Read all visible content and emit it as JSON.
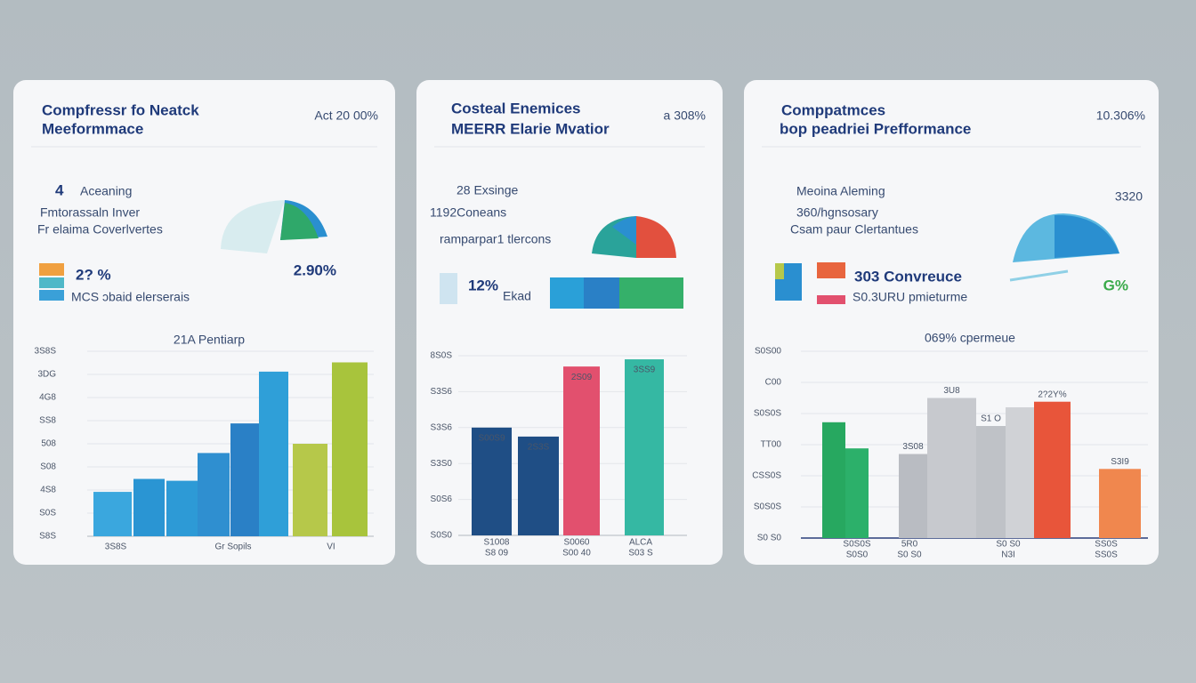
{
  "cards": [
    {
      "title": [
        "Compfressr fo Neatck",
        "Meeformmace"
      ],
      "corner": "Act 20 00%",
      "stats": [
        "4",
        "Aceaning",
        "Fmtorassaln Inver",
        "Fr elaima Coverlvertes"
      ],
      "big_value": "2.90%",
      "legend": [
        "2? %",
        "MCS ɔbaid elerserais"
      ],
      "chart": {
        "caption": "21A Pentiarp",
        "ylim": [
          0,
          100
        ],
        "ytick_labels": [
          "3S8S",
          "3DG",
          "4G8",
          "SS8",
          "508",
          "S08",
          "4S8",
          "S0S",
          "S8S"
        ],
        "x_labels": [
          [
            "3S8S"
          ],
          [
            "Gr Sopils"
          ],
          [
            "VI"
          ]
        ],
        "bars": [
          {
            "value": 24,
            "color": "#3aa7de"
          },
          {
            "value": 31,
            "color": "#2a95d3"
          },
          {
            "value": 30,
            "color": "#2d9ad6"
          },
          {
            "value": 45,
            "color": "#2f8fd0"
          },
          {
            "value": 61,
            "color": "#2a80c6"
          },
          {
            "value": 89,
            "color": "#2f9fd8"
          },
          {
            "value": 50,
            "color": "#b6c84a"
          },
          {
            "value": 94,
            "color": "#a8c43c"
          }
        ]
      }
    },
    {
      "title": [
        "Costeal Enemices",
        "MEERR Elarie Mvatior"
      ],
      "corner": "a 308%",
      "stats": [
        "28 Exsinge",
        "1192Coneans",
        "ramparpar1 tlercons"
      ],
      "big_value": "12%",
      "legend": [
        "Ekad"
      ],
      "chart": {
        "ylim": [
          0,
          100
        ],
        "ytick_labels": [
          "8S0S",
          "S3S6",
          "S3S6",
          "S3S0",
          "S0S6",
          "S0S0"
        ],
        "x_labels": [
          [
            "S1008",
            "S8 09"
          ],
          [
            "S0060",
            "S00 40"
          ],
          [
            "ALCA",
            "S03 S"
          ]
        ],
        "bars": [
          {
            "value": 60,
            "color": "#1f4e85",
            "label": "S00S9"
          },
          {
            "value": 55,
            "color": "#1f4e85",
            "label": "2S3S"
          },
          {
            "value": 94,
            "color": "#e2506e",
            "label": "2S09"
          },
          {
            "value": 98,
            "color": "#35b8a3",
            "label": "3SS9"
          }
        ]
      }
    },
    {
      "title": [
        "Comppatmces",
        "bop peadriei Prefformance"
      ],
      "corner": "10.306%",
      "stats": [
        "Meoina  Aleming",
        "360/hgnsosary",
        "Csam paur Clertantues",
        "3320"
      ],
      "big_value": "G%",
      "legend": [
        "303 Convreuce",
        "S0.3URU pmieturme"
      ],
      "chart": {
        "caption": "069% cpermeue",
        "ylim": [
          0,
          100
        ],
        "ytick_labels": [
          "S0S00",
          "C00",
          "S0S0S",
          "TT00",
          "CSS0S",
          "S0S0S",
          "S0 S0"
        ],
        "x_labels": [
          [
            "S0S0S",
            "S0S0"
          ],
          [
            "5R0",
            "S0 S0"
          ],
          [
            "S0 S0",
            "N3I"
          ],
          [
            "SS0S",
            "SS0S"
          ]
        ],
        "bars": [
          {
            "value": 62,
            "color": "#27a860"
          },
          {
            "value": 48,
            "color": "#2cb06a"
          },
          {
            "value": 45,
            "color": "#b9bcc2",
            "label": "3S08"
          },
          {
            "value": 75,
            "color": "#c7c9ce",
            "label": "3U8"
          },
          {
            "value": 60,
            "color": "#bfc2c7",
            "label": "S1 O"
          },
          {
            "value": 70,
            "color": "#d0d2d6"
          },
          {
            "value": 73,
            "color": "#e8553a",
            "label": "2?2Y%"
          },
          {
            "value": 37,
            "color": "#f0874e",
            "label": "S3I9"
          }
        ]
      }
    }
  ]
}
